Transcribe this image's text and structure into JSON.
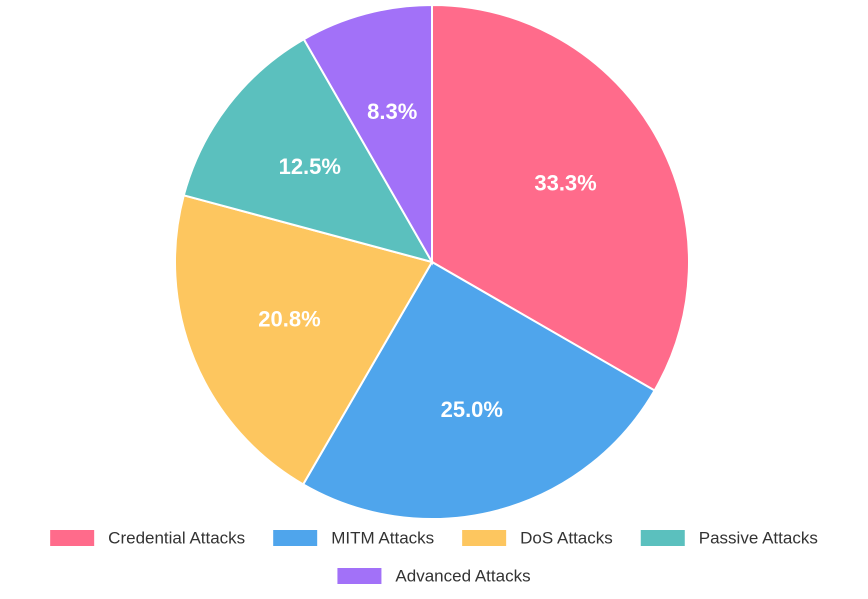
{
  "chart_data": {
    "type": "pie",
    "categories": [
      "Credential Attacks",
      "MITM Attacks",
      "DoS Attacks",
      "Passive Attacks",
      "Advanced Attacks"
    ],
    "values": [
      33.3,
      25.0,
      20.8,
      12.5,
      8.3
    ],
    "value_labels": [
      "33.3%",
      "25.0%",
      "20.8%",
      "12.5%",
      "8.3%"
    ],
    "colors": [
      "#ff6b8b",
      "#4fa5ec",
      "#fdc65f",
      "#5bc0be",
      "#a271f8"
    ],
    "legend": "bottom"
  }
}
